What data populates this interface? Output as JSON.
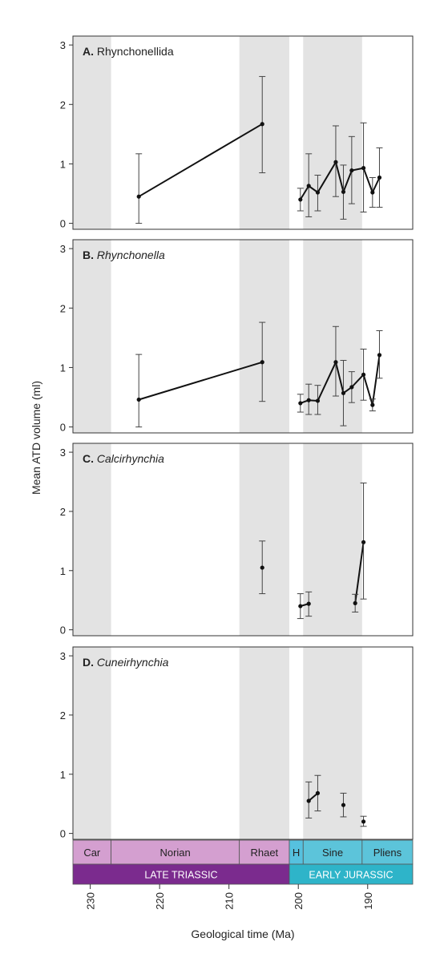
{
  "y_axis_label": "Mean ATD volume (ml)",
  "x_axis_label": "Geological time (Ma)",
  "x_ticks": [
    230,
    220,
    210,
    200,
    190
  ],
  "y_ticks": [
    0,
    1,
    2,
    3
  ],
  "colors": {
    "shade": "#e3e3e3",
    "late_triassic": "#7b2b8e",
    "late_triassic_stage": "#d49fd0",
    "early_jurassic": "#2eb4c9",
    "early_jurassic_stage": "#5cc4da",
    "hettangian": "#56c1df"
  },
  "shaded_intervals": [
    [
      232.5,
      227.0
    ],
    [
      208.5,
      201.3
    ],
    [
      199.3,
      190.8
    ]
  ],
  "epochs": [
    {
      "label": "LATE TRIASSIC",
      "start": 232.5,
      "end": 201.3,
      "color": "#7b2b8e",
      "text_color": "#ffffff"
    },
    {
      "label": "EARLY JURASSIC",
      "start": 201.3,
      "end": 183.5,
      "color": "#2eb4c9",
      "text_color": "#ffffff"
    }
  ],
  "stages": [
    {
      "label": "Car",
      "start": 232.5,
      "end": 227.0,
      "color": "#d49fd0"
    },
    {
      "label": "Norian",
      "start": 227.0,
      "end": 208.5,
      "color": "#d49fd0"
    },
    {
      "label": "Rhaet",
      "start": 208.5,
      "end": 201.3,
      "color": "#d49fd0"
    },
    {
      "label": "H",
      "start": 201.3,
      "end": 199.3,
      "color": "#56c1df"
    },
    {
      "label": "Sine",
      "start": 199.3,
      "end": 190.8,
      "color": "#5cc4da"
    },
    {
      "label": "Pliens",
      "start": 190.8,
      "end": 183.5,
      "color": "#5cc4da"
    }
  ],
  "chart_data": [
    {
      "type": "line",
      "letter": "A.",
      "taxon": "Rhynchonellida",
      "italic": false,
      "xlim": [
        232.5,
        183.5
      ],
      "ylim": [
        -0.1,
        3.15
      ],
      "segments": [
        [
          {
            "x": 223.0,
            "y": 0.45,
            "lo": 0.0,
            "hi": 1.17
          },
          {
            "x": 205.2,
            "y": 1.67,
            "lo": 0.85,
            "hi": 2.47
          }
        ],
        [
          {
            "x": 199.7,
            "y": 0.4,
            "lo": 0.21,
            "hi": 0.59
          },
          {
            "x": 198.5,
            "y": 0.63,
            "lo": 0.11,
            "hi": 1.17
          },
          {
            "x": 197.2,
            "y": 0.52,
            "lo": 0.21,
            "hi": 0.81
          },
          {
            "x": 194.6,
            "y": 1.03,
            "lo": 0.45,
            "hi": 1.64
          },
          {
            "x": 193.5,
            "y": 0.53,
            "lo": 0.07,
            "hi": 0.98
          },
          {
            "x": 192.3,
            "y": 0.89,
            "lo": 0.33,
            "hi": 1.46
          },
          {
            "x": 190.6,
            "y": 0.93,
            "lo": 0.19,
            "hi": 1.69
          },
          {
            "x": 189.3,
            "y": 0.52,
            "lo": 0.27,
            "hi": 0.77
          },
          {
            "x": 188.3,
            "y": 0.77,
            "lo": 0.27,
            "hi": 1.27
          }
        ]
      ]
    },
    {
      "type": "line",
      "letter": "B.",
      "taxon": "Rhynchonella",
      "italic": true,
      "xlim": [
        232.5,
        183.5
      ],
      "ylim": [
        -0.1,
        3.15
      ],
      "segments": [
        [
          {
            "x": 223.0,
            "y": 0.46,
            "lo": 0.0,
            "hi": 1.22
          },
          {
            "x": 205.2,
            "y": 1.09,
            "lo": 0.43,
            "hi": 1.76
          }
        ],
        [
          {
            "x": 199.7,
            "y": 0.4,
            "lo": 0.25,
            "hi": 0.55
          },
          {
            "x": 198.5,
            "y": 0.45,
            "lo": 0.21,
            "hi": 0.72
          },
          {
            "x": 197.2,
            "y": 0.44,
            "lo": 0.21,
            "hi": 0.7
          },
          {
            "x": 194.6,
            "y": 1.09,
            "lo": 0.52,
            "hi": 1.69
          },
          {
            "x": 193.5,
            "y": 0.57,
            "lo": 0.02,
            "hi": 1.12
          },
          {
            "x": 192.3,
            "y": 0.67,
            "lo": 0.41,
            "hi": 0.93
          },
          {
            "x": 190.6,
            "y": 0.88,
            "lo": 0.45,
            "hi": 1.31
          },
          {
            "x": 189.3,
            "y": 0.37,
            "lo": 0.27,
            "hi": 0.47
          },
          {
            "x": 188.3,
            "y": 1.21,
            "lo": 0.82,
            "hi": 1.62
          }
        ]
      ]
    },
    {
      "type": "line",
      "letter": "C.",
      "taxon": "Calcirhynchia",
      "italic": true,
      "xlim": [
        232.5,
        183.5
      ],
      "ylim": [
        -0.1,
        3.15
      ],
      "segments": [
        [
          {
            "x": 205.2,
            "y": 1.05,
            "lo": 0.61,
            "hi": 1.5
          }
        ],
        [
          {
            "x": 199.7,
            "y": 0.4,
            "lo": 0.19,
            "hi": 0.61
          },
          {
            "x": 198.5,
            "y": 0.44,
            "lo": 0.23,
            "hi": 0.64
          }
        ],
        [
          {
            "x": 191.8,
            "y": 0.45,
            "lo": 0.3,
            "hi": 0.6
          },
          {
            "x": 190.6,
            "y": 1.48,
            "lo": 0.52,
            "hi": 2.48
          }
        ]
      ]
    },
    {
      "type": "line",
      "letter": "D.",
      "taxon": "Cuneirhynchia",
      "italic": true,
      "xlim": [
        232.5,
        183.5
      ],
      "ylim": [
        -0.1,
        3.15
      ],
      "segments": [
        [
          {
            "x": 198.5,
            "y": 0.55,
            "lo": 0.26,
            "hi": 0.87
          },
          {
            "x": 197.2,
            "y": 0.68,
            "lo": 0.38,
            "hi": 0.98
          }
        ],
        [
          {
            "x": 193.5,
            "y": 0.48,
            "lo": 0.28,
            "hi": 0.68
          }
        ],
        [
          {
            "x": 190.6,
            "y": 0.2,
            "lo": 0.12,
            "hi": 0.29
          }
        ]
      ]
    }
  ]
}
